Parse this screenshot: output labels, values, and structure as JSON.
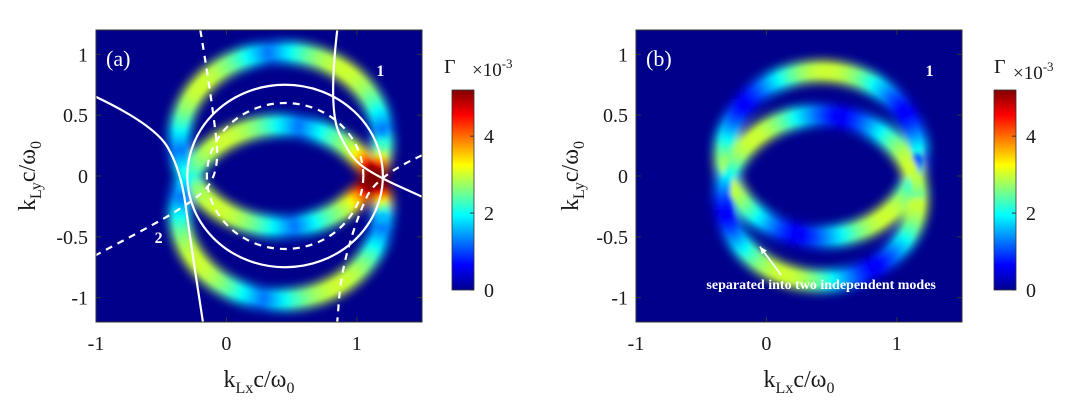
{
  "chart_data": [
    {
      "type": "heatmap",
      "panel_label": "(a)",
      "xlabel": {
        "base": "k",
        "sub": "Lx",
        "tail": "c/ω",
        "tail_sub": "0"
      },
      "ylabel": {
        "base": "k",
        "sub": "Ly",
        "tail": "c/ω",
        "tail_sub": "0"
      },
      "xlim": [
        -1,
        1.5
      ],
      "ylim": [
        -1.2,
        1.2
      ],
      "xticks": [
        {
          "value": -1,
          "label": "-1"
        },
        {
          "value": 0,
          "label": "0"
        },
        {
          "value": 1,
          "label": "1"
        }
      ],
      "yticks": [
        {
          "value": 1,
          "label": "1"
        },
        {
          "value": 0.5,
          "label": "0.5"
        },
        {
          "value": 0,
          "label": "0"
        },
        {
          "value": -0.5,
          "label": "-0.5"
        },
        {
          "value": -1,
          "label": "-1"
        }
      ],
      "colorbar": {
        "title": "Γ",
        "multiplier_base": "×10",
        "multiplier_exp": "-3",
        "range": [
          0,
          5.2
        ],
        "ticks": [
          {
            "value": 0,
            "label": "0"
          },
          {
            "value": 2,
            "label": "2"
          },
          {
            "value": 4,
            "label": "4"
          }
        ]
      },
      "annotations": [
        {
          "text": "1",
          "x": 1.15,
          "y": 0.82
        },
        {
          "text": "2",
          "x": -0.55,
          "y": -0.55
        }
      ],
      "overlay_curves": [
        {
          "style": "solid",
          "description": "circle",
          "center": [
            0.45,
            0
          ],
          "radius": 0.75
        },
        {
          "style": "dashed",
          "description": "circle",
          "center": [
            0.45,
            0
          ],
          "radius": 0.6
        },
        {
          "style": "solid",
          "description": "branch",
          "points": [
            [
              -1,
              0.65
            ],
            [
              -0.55,
              0.42
            ],
            [
              -0.35,
              0.05
            ],
            [
              -0.28,
              -0.5
            ],
            [
              -0.18,
              -1.2
            ]
          ]
        },
        {
          "style": "solid",
          "description": "branch",
          "points": [
            [
              0.85,
              1.2
            ],
            [
              0.78,
              0.55
            ],
            [
              0.95,
              0.15
            ],
            [
              1.15,
              0
            ],
            [
              1.5,
              -0.17
            ]
          ]
        },
        {
          "style": "dashed",
          "description": "branch",
          "points": [
            [
              -0.2,
              1.2
            ],
            [
              -0.1,
              0.55
            ],
            [
              -0.05,
              0
            ],
            [
              -0.3,
              -0.25
            ],
            [
              -1,
              -0.65
            ]
          ]
        },
        {
          "style": "dashed",
          "description": "branch",
          "points": [
            [
              1.5,
              0.17
            ],
            [
              1.15,
              0
            ],
            [
              1.0,
              -0.35
            ],
            [
              0.88,
              -0.8
            ],
            [
              0.85,
              -1.2
            ]
          ]
        }
      ],
      "data_description": "Γ intensity map; two crescent-lobed ring bands centred near (0.45, 0); maximum (~5.2×10^-3) near (1.15, 0)"
    },
    {
      "type": "heatmap",
      "panel_label": "(b)",
      "xlabel": {
        "base": "k",
        "sub": "Lx",
        "tail": "c/ω",
        "tail_sub": "0"
      },
      "ylabel": {
        "base": "k",
        "sub": "Ly",
        "tail": "c/ω",
        "tail_sub": "0"
      },
      "xlim": [
        -1,
        1.5
      ],
      "ylim": [
        -1.2,
        1.2
      ],
      "xticks": [
        {
          "value": -1,
          "label": "-1"
        },
        {
          "value": 0,
          "label": "0"
        },
        {
          "value": 1,
          "label": "1"
        }
      ],
      "yticks": [
        {
          "value": 1,
          "label": "1"
        },
        {
          "value": 0.5,
          "label": "0.5"
        },
        {
          "value": 0,
          "label": "0"
        },
        {
          "value": -0.5,
          "label": "-0.5"
        },
        {
          "value": -1,
          "label": "-1"
        }
      ],
      "colorbar": {
        "title": "Γ",
        "multiplier_base": "×10",
        "multiplier_exp": "-3",
        "range": [
          0,
          5.2
        ],
        "ticks": [
          {
            "value": 0,
            "label": "0"
          },
          {
            "value": 2,
            "label": "2"
          },
          {
            "value": 4,
            "label": "4"
          }
        ]
      },
      "annotations": [
        {
          "text": "1",
          "x": 1.22,
          "y": 0.82
        },
        {
          "text": "separated into two independent modes",
          "x": 0.42,
          "y": -0.93,
          "arrow_to": [
            -0.05,
            -0.58
          ]
        }
      ],
      "data_description": "Γ intensity map; two overlapping ring bands centred near (0.45, 0), each with two bright lobes"
    }
  ]
}
